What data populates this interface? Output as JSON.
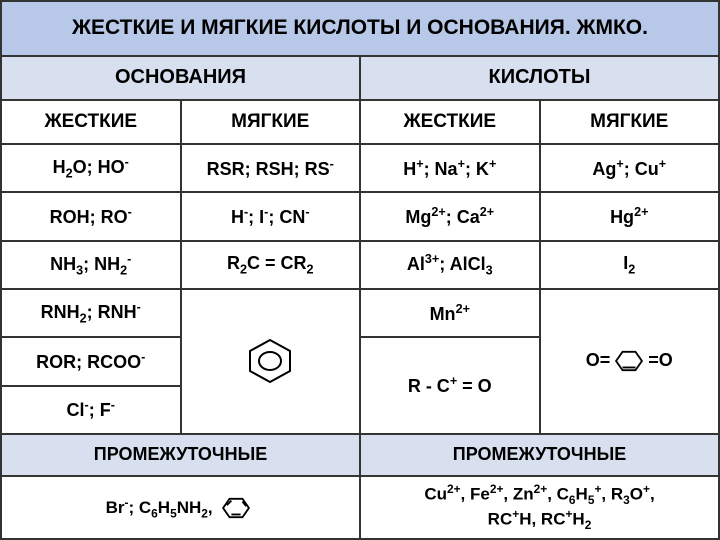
{
  "title": "ЖЕСТКИЕ И МЯГКИЕ КИСЛОТЫ И ОСНОВАНИЯ. ЖМКО.",
  "groups": {
    "bases": "ОСНОВАНИЯ",
    "acids": "КИСЛОТЫ"
  },
  "cols": {
    "hard": "ЖЕСТКИЕ",
    "soft": "МЯГКИЕ"
  },
  "intermediate": "ПРОМЕЖУТОЧНЫЕ",
  "colors": {
    "title_bg": "#b8c8e8",
    "group_bg": "#d8e0f0",
    "border": "#333333",
    "text": "#000000",
    "cell_bg": "#ffffff"
  },
  "fonts": {
    "title": 21,
    "group": 20,
    "col": 19,
    "data": 18,
    "inter_header": 18,
    "inter_data": 17,
    "family": "Arial",
    "weight": "bold"
  },
  "bases_hard": [
    "H<sub>2</sub>O; HO<sup>-</sup>",
    "ROH; RO<sup>-</sup>",
    "NH<sub>3</sub>; NH<sub>2</sub><sup>-</sup>",
    "RNH<sub>2</sub>; RNH<sup>-</sup>",
    "ROR; RCOO<sup>-</sup>",
    "Cl<sup>-</sup>; F<sup>-</sup>"
  ],
  "bases_soft": [
    "RSR; RSH; RS<sup>-</sup>",
    "H<sup>-</sup>; I<sup>-</sup>; CN<sup>-</sup>",
    "R<sub>2</sub>C = CR<sub>2</sub>"
  ],
  "acids_hard": [
    "H<sup>+</sup>; Na<sup>+</sup>; K<sup>+</sup>",
    "Mg<sup>2+</sup>; Ca<sup>2+</sup>",
    "Al<sup>3+</sup>; AlCl<sub>3</sub>",
    "Mn<sup>2+</sup>",
    "R - C<sup>+</sup> = O"
  ],
  "acids_soft": [
    "Ag<sup>+</sup>; Cu<sup>+</sup>",
    "Hg<sup>2+</sup>",
    "I<sub>2</sub>"
  ],
  "bases_intermediate": "Br<sup>-</sup>; C<sub>6</sub>H<sub>5</sub>NH<sub>2</sub>,",
  "acids_intermediate": "Cu<sup>2+</sup>, Fe<sup>2+</sup>, Zn<sup>2+</sup>, C<sub>6</sub>H<sub>5</sub><sup>+</sup>, R<sub>3</sub>O<sup>+</sup>,<br>RC<sup>+</sup>H, RC<sup>+</sup>H<sub>2</sub>",
  "quinone_prefix": "O=",
  "quinone_suffix": "=O",
  "benzene_icon": "benzene-ring",
  "hexagon_icon": "hexagon",
  "quinone_icon": "quinone-ring"
}
